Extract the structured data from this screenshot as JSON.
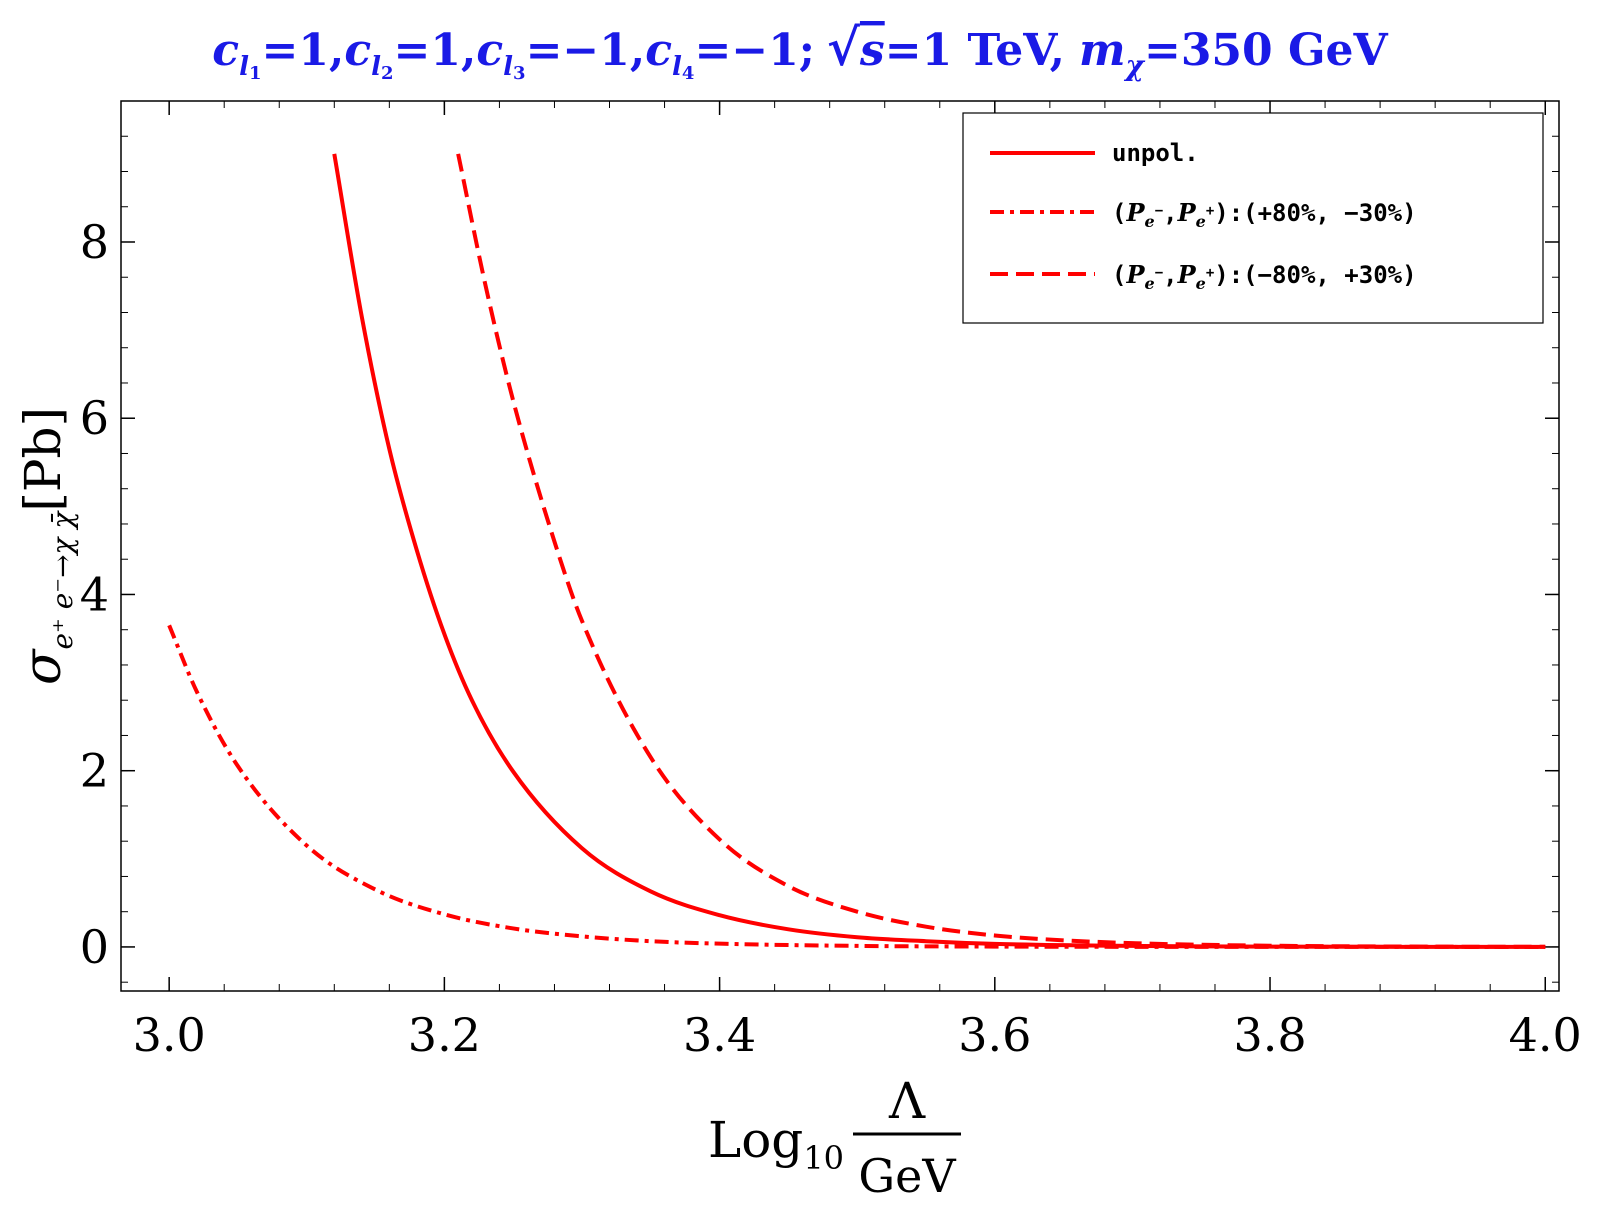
{
  "chart_data": {
    "type": "line",
    "title": {
      "c1": "c",
      "c1_sub": "l",
      "c1_subsub": "1",
      "c1_val": "=1,",
      "c2": "c",
      "c2_sub": "l",
      "c2_subsub": "2",
      "c2_val": "=1,",
      "c3": "c",
      "c3_sub": "l",
      "c3_subsub": "3",
      "c3_val": "=−1,",
      "c4": "c",
      "c4_sub": "l",
      "c4_subsub": "4",
      "c4_val": "=−1;",
      "sqrt_s": "s",
      "energy": "=1 TeV,",
      "m": "m",
      "m_sub": "χ",
      "mass": "=350 GeV"
    },
    "xlabel": {
      "log": "Log",
      "log_sub": "10",
      "numerator": "Λ",
      "denominator": "GeV"
    },
    "ylabel": {
      "sigma": "σ",
      "sub": "e⁺ e⁻→χ χ̄",
      "unit": "[Pb]"
    },
    "xlim": [
      2.965,
      4.01
    ],
    "ylim": [
      -0.5,
      9.6
    ],
    "x_ticks": [
      3.0,
      3.2,
      3.4,
      3.6,
      3.8,
      4.0
    ],
    "x_tick_labels": [
      "3.0",
      "3.2",
      "3.4",
      "3.6",
      "3.8",
      "4.0"
    ],
    "y_ticks": [
      0,
      2,
      4,
      6,
      8
    ],
    "y_tick_labels": [
      "0",
      "2",
      "4",
      "6",
      "8"
    ],
    "x_minor_step": 0.04,
    "y_minor_step": 0.4,
    "legend_position": "top-right",
    "series": [
      {
        "name": "unpol.",
        "color": "#ff0000",
        "dash": "solid",
        "x": [
          3.12,
          3.14,
          3.16,
          3.18,
          3.2,
          3.22,
          3.25,
          3.3,
          3.35,
          3.4,
          3.45,
          3.5,
          3.55,
          3.6,
          3.65,
          3.7,
          3.8,
          3.9,
          4.0
        ],
        "y": [
          9.0,
          7.15,
          5.65,
          4.5,
          3.55,
          2.8,
          1.99,
          1.12,
          0.63,
          0.36,
          0.2,
          0.11,
          0.065,
          0.035,
          0.02,
          0.012,
          0.004,
          0.0013,
          0.0004
        ]
      },
      {
        "name": "(P_{e⁻}, P_{e⁺}):(+80%, −30%)",
        "color": "#ff0000",
        "dash": "dashdot",
        "x": [
          3.0,
          3.02,
          3.05,
          3.1,
          3.15,
          3.2,
          3.25,
          3.3,
          3.35,
          3.4,
          3.5,
          3.6,
          3.7,
          3.8,
          3.9,
          4.0
        ],
        "y": [
          3.65,
          2.9,
          2.05,
          1.15,
          0.65,
          0.37,
          0.21,
          0.12,
          0.065,
          0.037,
          0.012,
          0.004,
          0.0012,
          0.0004,
          0.0001,
          0.0
        ]
      },
      {
        "name": "(P_{e⁻}, P_{e⁺}):(−80%, +30%)",
        "color": "#ff0000",
        "dash": "dashed",
        "x": [
          3.21,
          3.23,
          3.25,
          3.28,
          3.3,
          3.35,
          3.4,
          3.45,
          3.5,
          3.55,
          3.6,
          3.65,
          3.7,
          3.75,
          3.8,
          3.9,
          4.0
        ],
        "y": [
          9.0,
          7.5,
          6.2,
          4.6,
          3.7,
          2.15,
          1.22,
          0.69,
          0.4,
          0.23,
          0.13,
          0.075,
          0.043,
          0.025,
          0.014,
          0.0045,
          0.0015
        ]
      }
    ]
  }
}
